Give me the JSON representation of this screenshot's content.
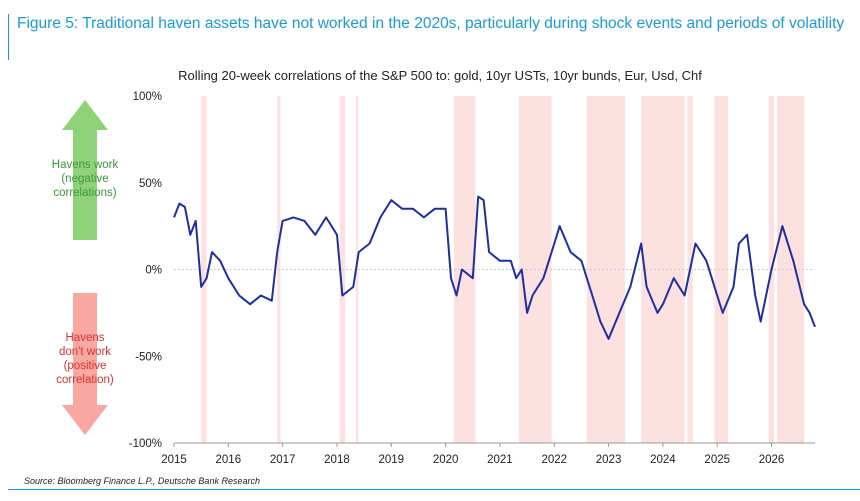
{
  "header": {
    "title": "Figure 5:  Traditional haven assets have not worked in the 2020s, particularly during shock events and periods of volatility"
  },
  "chart_data": {
    "type": "line",
    "title": "Rolling 20-week correlations of the S&P 500 to: gold, 10yr USTs, 10yr bunds, Eur, Usd, Chf",
    "upper_note": [
      "Havens work",
      "(negative",
      "correlations)"
    ],
    "lower_note": [
      "Havens",
      "don't work",
      "(positive",
      "correlation)"
    ],
    "x": [
      2015.0,
      2015.1,
      2015.2,
      2015.3,
      2015.4,
      2015.5,
      2015.6,
      2015.7,
      2015.85,
      2016.0,
      2016.2,
      2016.4,
      2016.6,
      2016.8,
      2016.9,
      2017.0,
      2017.2,
      2017.4,
      2017.6,
      2017.8,
      2018.0,
      2018.1,
      2018.3,
      2018.4,
      2018.6,
      2018.8,
      2019.0,
      2019.2,
      2019.4,
      2019.6,
      2019.8,
      2020.0,
      2020.1,
      2020.2,
      2020.3,
      2020.5,
      2020.6,
      2020.7,
      2020.8,
      2021.0,
      2021.2,
      2021.3,
      2021.4,
      2021.5,
      2021.6,
      2021.8,
      2022.0,
      2022.1,
      2022.3,
      2022.5,
      2022.7,
      2022.85,
      2023.0,
      2023.2,
      2023.4,
      2023.6,
      2023.7,
      2023.9,
      2024.0,
      2024.2,
      2024.4,
      2024.6,
      2024.8,
      2025.0,
      2025.1,
      2025.3,
      2025.4,
      2025.55,
      2025.7,
      2025.8,
      2026.0,
      2026.2,
      2026.4,
      2026.6,
      2026.7,
      2026.8
    ],
    "series": [
      {
        "color": "#1f2f9e",
        "values": [
          30,
          38,
          36,
          20,
          28,
          -10,
          -5,
          10,
          5,
          -5,
          -15,
          -20,
          -15,
          -18,
          10,
          28,
          30,
          28,
          20,
          30,
          20,
          -15,
          -10,
          10,
          15,
          30,
          40,
          35,
          35,
          30,
          35,
          35,
          -5,
          -15,
          0,
          -5,
          42,
          40,
          10,
          5,
          5,
          -5,
          0,
          -25,
          -15,
          -5,
          15,
          25,
          10,
          5,
          -15,
          -30,
          -40,
          -25,
          -10,
          15,
          -10,
          -25,
          -20,
          -5,
          -15,
          15,
          5,
          -15,
          -25,
          -10,
          15,
          20,
          -15,
          -30,
          0,
          25,
          5,
          -20,
          -25,
          -33
        ]
      }
    ],
    "shaded_periods": [
      [
        2015.5,
        2015.6
      ],
      [
        2016.9,
        2016.96
      ],
      [
        2018.05,
        2018.15
      ],
      [
        2018.35,
        2018.39
      ],
      [
        2020.15,
        2020.55
      ],
      [
        2021.35,
        2021.95
      ],
      [
        2022.6,
        2023.3
      ],
      [
        2023.6,
        2024.4
      ],
      [
        2024.45,
        2024.55
      ],
      [
        2024.95,
        2025.2
      ],
      [
        2025.95,
        2026.05
      ],
      [
        2026.1,
        2026.6
      ]
    ],
    "shade_color": "#fde0e0",
    "xlim": [
      2015,
      2026.8
    ],
    "xticks": [
      2015,
      2016,
      2017,
      2018,
      2019,
      2020,
      2021,
      2022,
      2023,
      2024,
      2025,
      2026
    ],
    "ylim": [
      -100,
      100
    ],
    "yticks": [
      {
        "value": -100,
        "label": "-100%"
      },
      {
        "value": -50,
        "label": "-50%"
      },
      {
        "value": 0,
        "label": "0%"
      },
      {
        "value": 50,
        "label": "50%"
      },
      {
        "value": 100,
        "label": "100%"
      }
    ]
  },
  "footer": {
    "source": "Source: Bloomberg Finance L.P., Deutsche Bank Research"
  }
}
